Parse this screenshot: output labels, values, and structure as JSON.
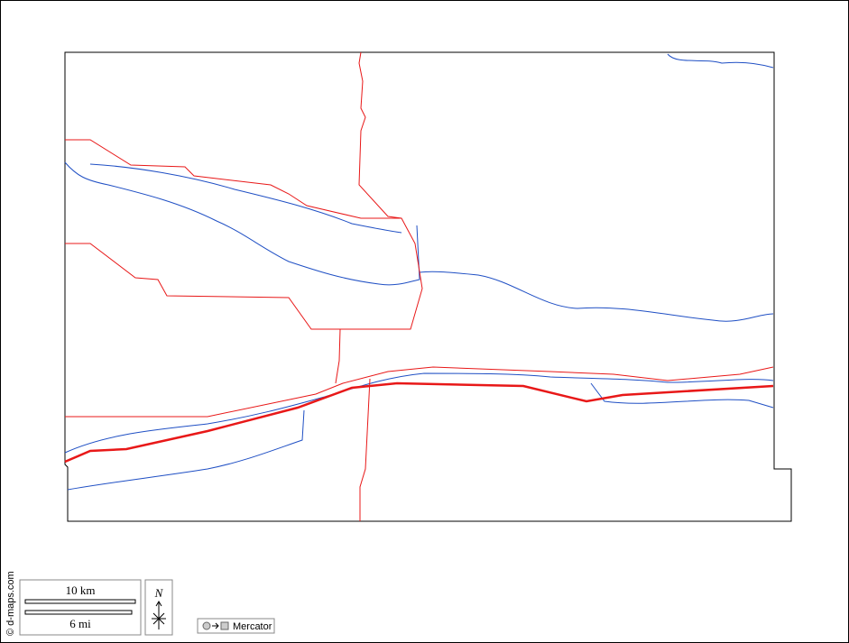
{
  "scale_bar": {
    "km_label": "10 km",
    "mi_label": "6 mi"
  },
  "compass": {
    "label": "N"
  },
  "projection": {
    "label": "Mercator"
  },
  "credit": "© d-maps.com"
}
